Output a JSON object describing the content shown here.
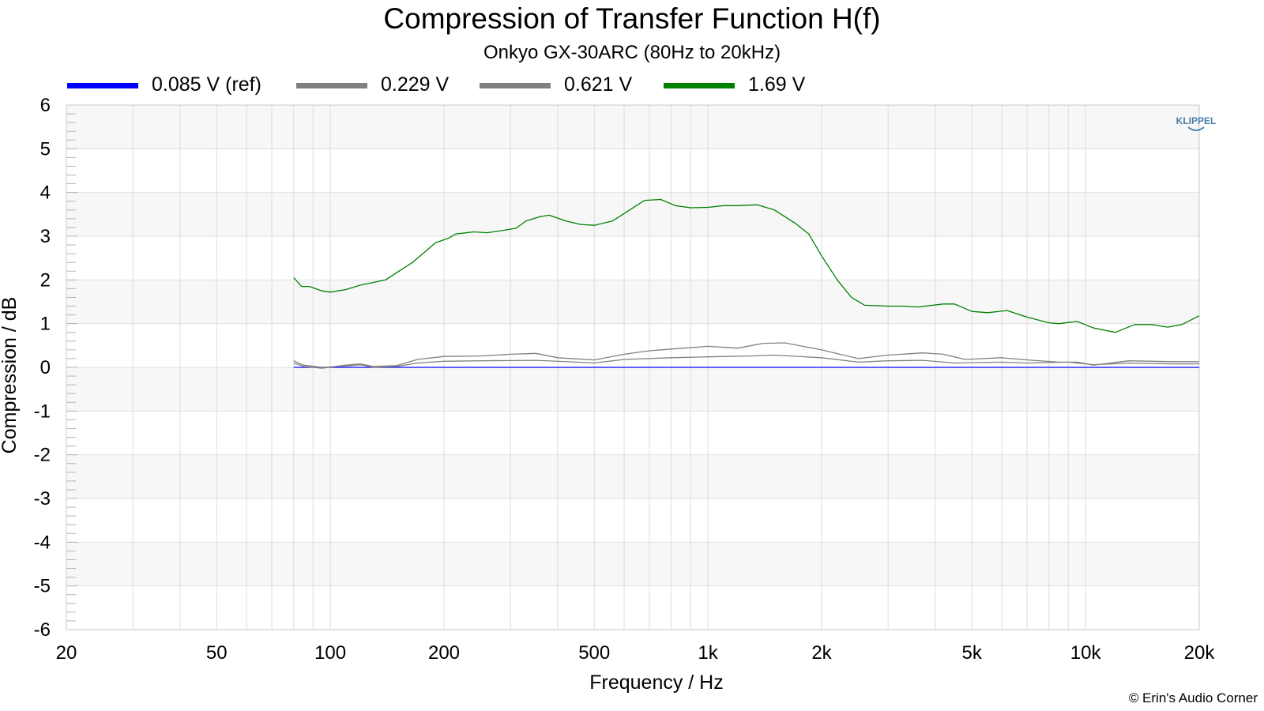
{
  "chart_data": {
    "type": "line",
    "title": "Compression of Transfer Function H(f)",
    "subtitle": "Onkyo GX-30ARC (80Hz to 20kHz)",
    "xlabel": "Frequency / Hz",
    "ylabel": "Compression / dB",
    "xscale": "log",
    "xlim": [
      20,
      20000
    ],
    "ylim": [
      -6,
      6
    ],
    "x_ticks": [
      20,
      50,
      100,
      200,
      500,
      1000,
      2000,
      5000,
      10000,
      20000
    ],
    "x_tick_labels": [
      "20",
      "50",
      "100",
      "200",
      "500",
      "1k",
      "2k",
      "5k",
      "10k",
      "20k"
    ],
    "y_ticks": [
      6,
      5,
      4,
      3,
      2,
      1,
      0,
      -1,
      -2,
      -3,
      -4,
      -5,
      -6
    ],
    "y_tick_labels": [
      "6",
      "5",
      "4",
      "3",
      "2",
      "1",
      "0",
      "-1",
      "-2",
      "-3",
      "-4",
      "-5",
      "-6"
    ],
    "grid": true,
    "legend_position": "top",
    "series": [
      {
        "name": "0.085 V (ref)",
        "color": "#0000ff",
        "points": [
          [
            80,
            0
          ],
          [
            20000,
            0
          ]
        ]
      },
      {
        "name": "0.229 V",
        "color": "#808080",
        "points": [
          [
            80,
            0.15
          ],
          [
            85,
            0.05
          ],
          [
            95,
            0.0
          ],
          [
            110,
            0.03
          ],
          [
            120,
            0.06
          ],
          [
            130,
            0.0
          ],
          [
            150,
            0.02
          ],
          [
            170,
            0.1
          ],
          [
            200,
            0.14
          ],
          [
            250,
            0.15
          ],
          [
            350,
            0.16
          ],
          [
            450,
            0.12
          ],
          [
            500,
            0.1
          ],
          [
            600,
            0.18
          ],
          [
            800,
            0.22
          ],
          [
            1000,
            0.24
          ],
          [
            1300,
            0.26
          ],
          [
            1500,
            0.28
          ],
          [
            2000,
            0.22
          ],
          [
            2500,
            0.12
          ],
          [
            3000,
            0.15
          ],
          [
            3700,
            0.16
          ],
          [
            4500,
            0.1
          ],
          [
            6000,
            0.12
          ],
          [
            7000,
            0.1
          ],
          [
            9000,
            0.12
          ],
          [
            10500,
            0.06
          ],
          [
            13000,
            0.1
          ],
          [
            17000,
            0.08
          ],
          [
            20000,
            0.08
          ]
        ]
      },
      {
        "name": "0.621 V",
        "color": "#808080",
        "points": [
          [
            80,
            0.1
          ],
          [
            85,
            0.02
          ],
          [
            95,
            -0.02
          ],
          [
            110,
            0.05
          ],
          [
            120,
            0.08
          ],
          [
            130,
            0.02
          ],
          [
            150,
            0.04
          ],
          [
            170,
            0.18
          ],
          [
            200,
            0.25
          ],
          [
            250,
            0.26
          ],
          [
            300,
            0.3
          ],
          [
            350,
            0.32
          ],
          [
            400,
            0.22
          ],
          [
            500,
            0.17
          ],
          [
            600,
            0.3
          ],
          [
            700,
            0.38
          ],
          [
            800,
            0.42
          ],
          [
            1000,
            0.48
          ],
          [
            1200,
            0.44
          ],
          [
            1400,
            0.55
          ],
          [
            1600,
            0.56
          ],
          [
            2000,
            0.4
          ],
          [
            2500,
            0.2
          ],
          [
            3000,
            0.28
          ],
          [
            3700,
            0.33
          ],
          [
            4200,
            0.3
          ],
          [
            4800,
            0.18
          ],
          [
            6000,
            0.22
          ],
          [
            7000,
            0.17
          ],
          [
            8500,
            0.12
          ],
          [
            9500,
            0.12
          ],
          [
            10500,
            0.05
          ],
          [
            13000,
            0.15
          ],
          [
            17000,
            0.13
          ],
          [
            20000,
            0.13
          ]
        ]
      },
      {
        "name": "1.69 V",
        "color": "#008000",
        "points": [
          [
            80,
            2.05
          ],
          [
            84,
            1.85
          ],
          [
            88,
            1.85
          ],
          [
            95,
            1.75
          ],
          [
            100,
            1.72
          ],
          [
            110,
            1.78
          ],
          [
            120,
            1.88
          ],
          [
            140,
            2.0
          ],
          [
            165,
            2.4
          ],
          [
            190,
            2.85
          ],
          [
            205,
            2.95
          ],
          [
            215,
            3.05
          ],
          [
            240,
            3.1
          ],
          [
            260,
            3.08
          ],
          [
            280,
            3.12
          ],
          [
            310,
            3.18
          ],
          [
            330,
            3.35
          ],
          [
            360,
            3.45
          ],
          [
            380,
            3.48
          ],
          [
            420,
            3.35
          ],
          [
            460,
            3.27
          ],
          [
            500,
            3.25
          ],
          [
            560,
            3.35
          ],
          [
            620,
            3.6
          ],
          [
            680,
            3.82
          ],
          [
            750,
            3.84
          ],
          [
            820,
            3.7
          ],
          [
            900,
            3.65
          ],
          [
            1000,
            3.66
          ],
          [
            1100,
            3.7
          ],
          [
            1200,
            3.7
          ],
          [
            1350,
            3.72
          ],
          [
            1500,
            3.6
          ],
          [
            1700,
            3.3
          ],
          [
            1850,
            3.05
          ],
          [
            2000,
            2.55
          ],
          [
            2200,
            2.0
          ],
          [
            2400,
            1.6
          ],
          [
            2600,
            1.42
          ],
          [
            3000,
            1.4
          ],
          [
            3300,
            1.4
          ],
          [
            3600,
            1.38
          ],
          [
            4200,
            1.45
          ],
          [
            4500,
            1.45
          ],
          [
            5000,
            1.28
          ],
          [
            5500,
            1.25
          ],
          [
            6200,
            1.3
          ],
          [
            7000,
            1.15
          ],
          [
            8000,
            1.02
          ],
          [
            8500,
            1.0
          ],
          [
            9500,
            1.05
          ],
          [
            10500,
            0.9
          ],
          [
            12000,
            0.8
          ],
          [
            13500,
            0.98
          ],
          [
            15000,
            0.98
          ],
          [
            16500,
            0.92
          ],
          [
            18000,
            0.98
          ],
          [
            20000,
            1.18
          ]
        ]
      }
    ]
  },
  "logo_text": "KLIPPEL",
  "copyright": "© Erin's Audio Corner"
}
